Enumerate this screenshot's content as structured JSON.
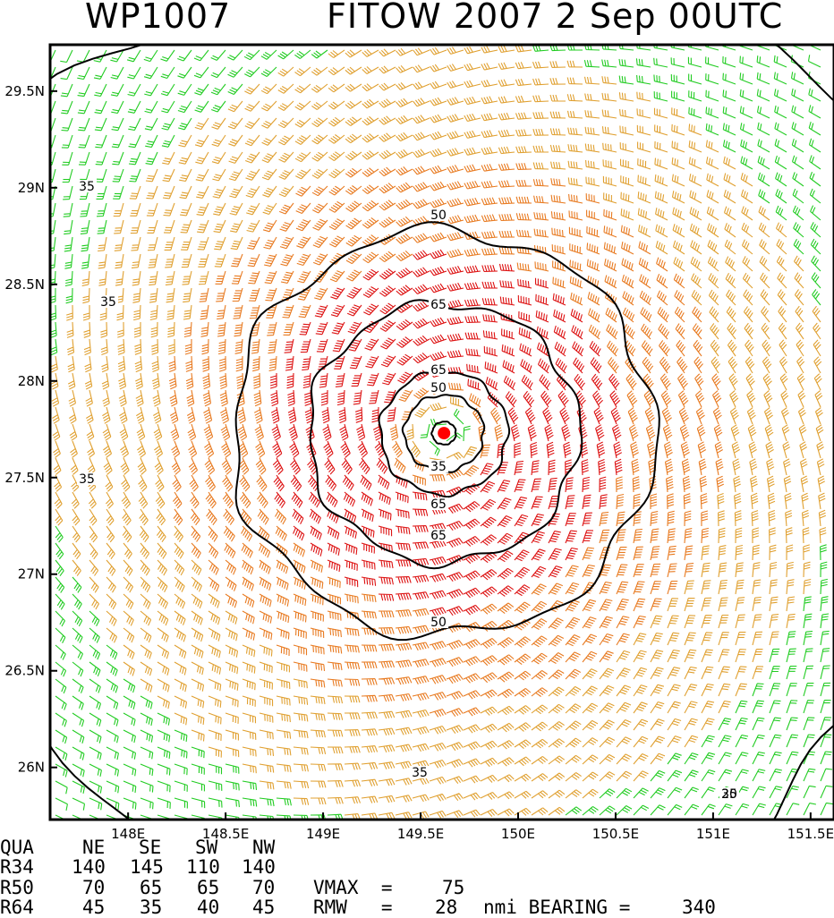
{
  "title": {
    "storm_id": "WP1007",
    "storm_name_time": "FITOW 2007  2 Sep 00UTC"
  },
  "map": {
    "lon_range": [
      147.6,
      151.62
    ],
    "lat_range": [
      25.73,
      29.74
    ],
    "lon_ticks": [
      "148E",
      "148.5E",
      "149E",
      "149.5E",
      "150E",
      "150.5E",
      "151E",
      "151.5E"
    ],
    "lon_tick_values": [
      148,
      148.5,
      149,
      149.5,
      150,
      150.5,
      151,
      151.5
    ],
    "lat_ticks": [
      "26N",
      "26.5N",
      "27N",
      "27.5N",
      "28N",
      "28.5N",
      "29N",
      "29.5N"
    ],
    "lat_tick_values": [
      26,
      26.5,
      27,
      27.5,
      28,
      28.5,
      29,
      29.5
    ],
    "storm_center": {
      "lon": 149.62,
      "lat": 27.73
    },
    "contours": [
      {
        "label": "35",
        "radius_deg": 2.6
      },
      {
        "label": "50",
        "radius_deg": 1.06
      },
      {
        "label": "65",
        "radius_deg": 0.68
      },
      {
        "label": "65",
        "radius_deg": 0.32
      },
      {
        "label": "50",
        "radius_deg": 0.2
      },
      {
        "label": "35",
        "radius_deg": 0.06
      }
    ],
    "contour_labels_shown": [
      "35",
      "35",
      "35",
      "35",
      "50",
      "65",
      "65",
      "50",
      "35",
      "65",
      "65",
      "50",
      "35",
      "20"
    ],
    "colors": {
      "below_34kt": "#22cc22",
      "34_to_50kt": "#e0a030",
      "50_to_64kt": "#e87a20",
      "above_64kt": "#dd1111",
      "center_marker": "#ff0000",
      "contour": "#000000"
    }
  },
  "table": {
    "header": [
      "QUA",
      "NE",
      "SE",
      "SW",
      "NW"
    ],
    "rows": [
      [
        "R34",
        "140",
        "145",
        "110",
        "140"
      ],
      [
        "R50",
        "70",
        "65",
        "65",
        "70"
      ],
      [
        "R64",
        "45",
        "35",
        "40",
        "45"
      ]
    ],
    "vmax_label": "VMAX  =",
    "vmax_value": "75",
    "rmw_label": "RMW   =",
    "rmw_value": "28",
    "rmw_unit": "nmi BEARING =",
    "bearing_value": "340"
  }
}
